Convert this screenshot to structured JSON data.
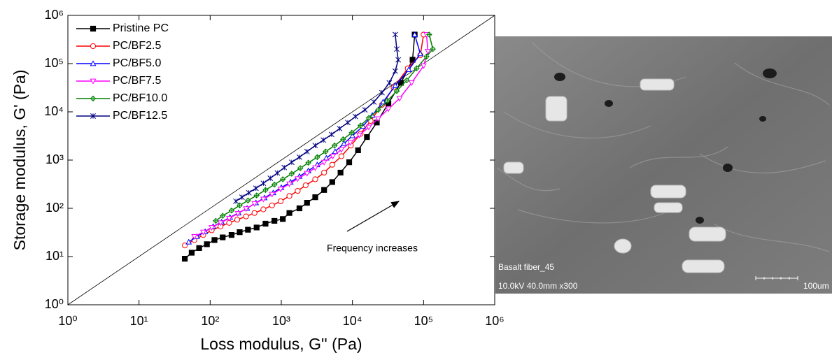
{
  "chart_data": {
    "type": "line",
    "xlabel": "Loss modulus, G'' (Pa)",
    "ylabel": "Storage modulus, G' (Pa)",
    "annotation": "Frequency increases",
    "xscale": "log",
    "yscale": "log",
    "xlim": [
      1,
      1000000
    ],
    "ylim": [
      1,
      1000000
    ],
    "xticks": [
      {
        "value": 1,
        "label": "10⁰"
      },
      {
        "value": 10,
        "label": "10¹"
      },
      {
        "value": 100,
        "label": "10²"
      },
      {
        "value": 1000,
        "label": "10³"
      },
      {
        "value": 10000,
        "label": "10⁴"
      },
      {
        "value": 100000,
        "label": "10⁵"
      },
      {
        "value": 1000000,
        "label": "10⁶"
      }
    ],
    "yticks": [
      {
        "value": 1,
        "label": "10⁰"
      },
      {
        "value": 10,
        "label": "10¹"
      },
      {
        "value": 100,
        "label": "10²"
      },
      {
        "value": 1000,
        "label": "10³"
      },
      {
        "value": 10000,
        "label": "10⁴"
      },
      {
        "value": 100000,
        "label": "10⁵"
      },
      {
        "value": 1000000,
        "label": "10⁶"
      }
    ],
    "legend": "upper left",
    "series": [
      {
        "name": "Pristine PC",
        "color": "#000000",
        "marker": "square",
        "x": [
          44,
          55,
          70,
          90,
          115,
          150,
          200,
          260,
          340,
          450,
          600,
          800,
          1050,
          1300,
          1800,
          2300,
          3000,
          4000,
          5200,
          6800,
          9000,
          12000,
          16000,
          22000,
          32000,
          48000,
          70000,
          75000
        ],
        "values": [
          9,
          12,
          15,
          18,
          22,
          25,
          28,
          32,
          36,
          40,
          48,
          55,
          60,
          80,
          100,
          130,
          170,
          240,
          350,
          550,
          900,
          1600,
          3000,
          6000,
          15000,
          40000,
          120000,
          400000
        ]
      },
      {
        "name": "PC/BF2.5",
        "color": "#ff0000",
        "marker": "circle",
        "x": [
          44,
          60,
          80,
          105,
          140,
          185,
          240,
          320,
          420,
          560,
          740,
          980,
          1300,
          1700,
          2200,
          3000,
          4000,
          5200,
          7000,
          9500,
          13000,
          18000,
          26000,
          38000,
          60000,
          90000,
          100000
        ],
        "values": [
          17,
          22,
          28,
          35,
          42,
          50,
          58,
          68,
          80,
          95,
          115,
          140,
          180,
          230,
          300,
          400,
          550,
          800,
          1200,
          2000,
          3500,
          6500,
          14000,
          32000,
          80000,
          150000,
          400000
        ]
      },
      {
        "name": "PC/BF5.0",
        "color": "#0000ff",
        "marker": "triangle-up",
        "x": [
          50,
          65,
          85,
          110,
          145,
          190,
          250,
          330,
          440,
          580,
          770,
          1000,
          1350,
          1800,
          2400,
          3200,
          4300,
          5700,
          7600,
          10000,
          14000,
          19000,
          27000,
          40000,
          62000,
          90000,
          75000
        ],
        "values": [
          20,
          26,
          33,
          42,
          52,
          65,
          80,
          100,
          130,
          165,
          210,
          270,
          350,
          460,
          600,
          800,
          1100,
          1500,
          2200,
          3200,
          5000,
          8500,
          16000,
          35000,
          75000,
          160000,
          400000
        ]
      },
      {
        "name": "PC/BF7.5",
        "color": "#ff00ff",
        "marker": "triangle-down",
        "x": [
          60,
          80,
          105,
          140,
          185,
          245,
          320,
          420,
          560,
          740,
          980,
          1300,
          1700,
          2300,
          3000,
          4000,
          5300,
          7000,
          9300,
          12500,
          17000,
          23000,
          32000,
          46000,
          68000,
          100000,
          115000,
          110000
        ],
        "values": [
          26,
          32,
          40,
          50,
          62,
          78,
          98,
          125,
          155,
          195,
          250,
          320,
          410,
          530,
          690,
          900,
          1200,
          1650,
          2300,
          3300,
          4800,
          7200,
          11500,
          19000,
          40000,
          90000,
          180000,
          400000
        ]
      },
      {
        "name": "PC/BF10.0",
        "color": "#008000",
        "marker": "diamond",
        "x": [
          120,
          150,
          200,
          260,
          340,
          450,
          600,
          800,
          1050,
          1400,
          1850,
          2400,
          3200,
          4200,
          5600,
          7400,
          9800,
          13000,
          17000,
          23000,
          31000,
          42000,
          58000,
          80000,
          110000,
          135000,
          120000
        ],
        "values": [
          55,
          70,
          90,
          115,
          145,
          185,
          240,
          310,
          400,
          520,
          680,
          880,
          1150,
          1500,
          2000,
          2700,
          3700,
          5200,
          7500,
          11000,
          17000,
          27000,
          45000,
          80000,
          140000,
          200000,
          400000
        ]
      },
      {
        "name": "PC/BF12.5",
        "color": "#000080",
        "marker": "star",
        "x": [
          230,
          280,
          350,
          440,
          560,
          700,
          880,
          1100,
          1400,
          1800,
          2300,
          3000,
          3900,
          5100,
          6600,
          8600,
          11000,
          15000,
          20000,
          26000,
          33000,
          40000,
          44000,
          42000,
          40000
        ],
        "values": [
          140,
          170,
          210,
          260,
          330,
          420,
          540,
          700,
          900,
          1150,
          1500,
          2000,
          2600,
          3400,
          4500,
          6000,
          8000,
          11000,
          16000,
          25000,
          40000,
          70000,
          120000,
          200000,
          400000
        ]
      }
    ]
  },
  "micrograph": {
    "caption": "Basalt fiber_45",
    "info": "10.0kV 40.0mm x300",
    "scale": "100um"
  }
}
